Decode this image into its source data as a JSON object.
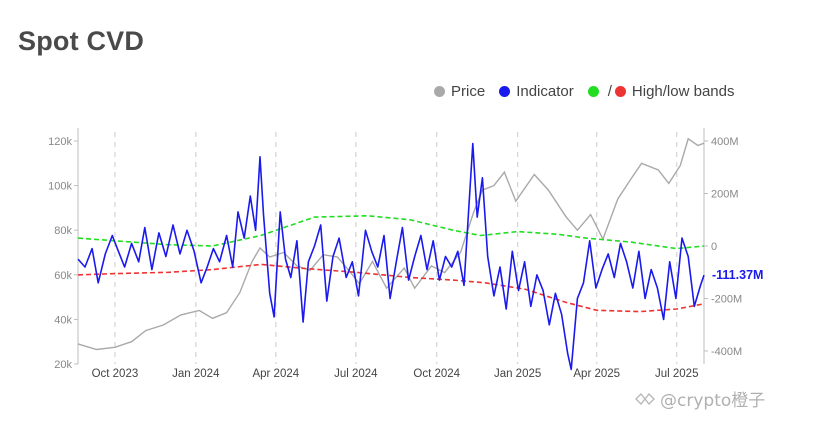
{
  "chart_data": {
    "type": "line",
    "title": "Spot CVD",
    "legend": {
      "placement": "top-right",
      "items": [
        {
          "label": "Price",
          "color": "#a9a9a9"
        },
        {
          "label": "Indicator",
          "color": "#1a1aee"
        },
        {
          "label": "High/low bands",
          "colors": [
            "#22dd22",
            "#ee3333"
          ]
        }
      ]
    },
    "x_ticks": [
      "Oct 2023",
      "Jan 2024",
      "Apr 2024",
      "Jul 2024",
      "Oct 2024",
      "Jan 2025",
      "Apr 2025",
      "Jul 2025"
    ],
    "x_range": [
      "2023-08-20",
      "2025-08-01"
    ],
    "y_left": {
      "ticks": [
        "20k",
        "40k",
        "60k",
        "80k",
        "100k",
        "120k"
      ],
      "range": [
        20000,
        120000
      ]
    },
    "y_right": {
      "ticks": [
        "400M",
        "200M",
        "0",
        "-200M",
        "-400M"
      ],
      "range": [
        -500,
        450
      ]
    },
    "last_indicator_label": "-111.37M",
    "series": [
      {
        "name": "Price",
        "axis": "left",
        "color": "#a9a9a9",
        "points": [
          [
            "2023-08-20",
            29000
          ],
          [
            "2023-09-10",
            26500
          ],
          [
            "2023-10-01",
            27500
          ],
          [
            "2023-10-20",
            30000
          ],
          [
            "2023-11-05",
            35000
          ],
          [
            "2023-11-25",
            37500
          ],
          [
            "2023-12-15",
            42000
          ],
          [
            "2024-01-05",
            44000
          ],
          [
            "2024-01-20",
            40500
          ],
          [
            "2024-02-05",
            43000
          ],
          [
            "2024-02-20",
            52000
          ],
          [
            "2024-03-05",
            66000
          ],
          [
            "2024-03-14",
            72000
          ],
          [
            "2024-03-25",
            68000
          ],
          [
            "2024-04-10",
            70000
          ],
          [
            "2024-04-25",
            64000
          ],
          [
            "2024-05-10",
            62000
          ],
          [
            "2024-05-25",
            69000
          ],
          [
            "2024-06-10",
            68000
          ],
          [
            "2024-06-25",
            61000
          ],
          [
            "2024-07-05",
            56000
          ],
          [
            "2024-07-20",
            66000
          ],
          [
            "2024-08-05",
            54000
          ],
          [
            "2024-08-25",
            63000
          ],
          [
            "2024-09-06",
            54000
          ],
          [
            "2024-09-25",
            64000
          ],
          [
            "2024-10-10",
            61000
          ],
          [
            "2024-10-28",
            70000
          ],
          [
            "2024-11-12",
            88000
          ],
          [
            "2024-11-22",
            98000
          ],
          [
            "2024-12-05",
            100000
          ],
          [
            "2024-12-17",
            106000
          ],
          [
            "2024-12-30",
            93000
          ],
          [
            "2025-01-20",
            105000
          ],
          [
            "2025-02-05",
            98000
          ],
          [
            "2025-02-25",
            86000
          ],
          [
            "2025-03-10",
            80000
          ],
          [
            "2025-03-25",
            87000
          ],
          [
            "2025-04-08",
            76000
          ],
          [
            "2025-04-25",
            94000
          ],
          [
            "2025-05-10",
            103000
          ],
          [
            "2025-05-22",
            110000
          ],
          [
            "2025-06-10",
            107000
          ],
          [
            "2025-06-22",
            101000
          ],
          [
            "2025-07-05",
            109000
          ],
          [
            "2025-07-14",
            121000
          ],
          [
            "2025-07-25",
            118000
          ],
          [
            "2025-08-01",
            119000
          ]
        ]
      },
      {
        "name": "Indicator",
        "axis": "right",
        "color": "#1a1aee",
        "points": [
          [
            "2023-08-20",
            -50
          ],
          [
            "2023-08-28",
            -80
          ],
          [
            "2023-09-05",
            -10
          ],
          [
            "2023-09-12",
            -140
          ],
          [
            "2023-09-20",
            -30
          ],
          [
            "2023-09-28",
            40
          ],
          [
            "2023-10-05",
            -20
          ],
          [
            "2023-10-12",
            -80
          ],
          [
            "2023-10-20",
            10
          ],
          [
            "2023-10-28",
            -60
          ],
          [
            "2023-11-04",
            70
          ],
          [
            "2023-11-12",
            -90
          ],
          [
            "2023-11-20",
            50
          ],
          [
            "2023-11-28",
            -40
          ],
          [
            "2023-12-06",
            80
          ],
          [
            "2023-12-14",
            -30
          ],
          [
            "2023-12-22",
            60
          ],
          [
            "2023-12-30",
            -20
          ],
          [
            "2024-01-07",
            -140
          ],
          [
            "2024-01-14",
            -80
          ],
          [
            "2024-01-21",
            -10
          ],
          [
            "2024-01-28",
            -60
          ],
          [
            "2024-02-05",
            40
          ],
          [
            "2024-02-12",
            -80
          ],
          [
            "2024-02-18",
            130
          ],
          [
            "2024-02-25",
            30
          ],
          [
            "2024-03-03",
            190
          ],
          [
            "2024-03-09",
            60
          ],
          [
            "2024-03-14",
            340
          ],
          [
            "2024-03-18",
            120
          ],
          [
            "2024-03-25",
            -180
          ],
          [
            "2024-03-30",
            -270
          ],
          [
            "2024-04-06",
            130
          ],
          [
            "2024-04-12",
            -50
          ],
          [
            "2024-04-18",
            -120
          ],
          [
            "2024-04-25",
            20
          ],
          [
            "2024-05-02",
            -290
          ],
          [
            "2024-05-08",
            -60
          ],
          [
            "2024-05-15",
            0
          ],
          [
            "2024-05-22",
            80
          ],
          [
            "2024-05-29",
            -210
          ],
          [
            "2024-06-05",
            -40
          ],
          [
            "2024-06-12",
            30
          ],
          [
            "2024-06-20",
            -120
          ],
          [
            "2024-06-27",
            -60
          ],
          [
            "2024-07-04",
            -190
          ],
          [
            "2024-07-12",
            60
          ],
          [
            "2024-07-19",
            -20
          ],
          [
            "2024-07-26",
            -80
          ],
          [
            "2024-08-02",
            40
          ],
          [
            "2024-08-09",
            -200
          ],
          [
            "2024-08-16",
            -60
          ],
          [
            "2024-08-23",
            70
          ],
          [
            "2024-08-30",
            -130
          ],
          [
            "2024-09-06",
            -40
          ],
          [
            "2024-09-13",
            40
          ],
          [
            "2024-09-20",
            -90
          ],
          [
            "2024-09-27",
            20
          ],
          [
            "2024-10-04",
            -130
          ],
          [
            "2024-10-11",
            -40
          ],
          [
            "2024-10-18",
            -80
          ],
          [
            "2024-10-25",
            -20
          ],
          [
            "2024-11-01",
            -150
          ],
          [
            "2024-11-06",
            120
          ],
          [
            "2024-11-11",
            390
          ],
          [
            "2024-11-16",
            110
          ],
          [
            "2024-11-22",
            260
          ],
          [
            "2024-11-28",
            -40
          ],
          [
            "2024-12-05",
            -190
          ],
          [
            "2024-12-12",
            -80
          ],
          [
            "2024-12-19",
            -240
          ],
          [
            "2024-12-26",
            -20
          ],
          [
            "2025-01-02",
            -170
          ],
          [
            "2025-01-09",
            -60
          ],
          [
            "2025-01-16",
            -230
          ],
          [
            "2025-01-23",
            -110
          ],
          [
            "2025-01-30",
            -170
          ],
          [
            "2025-02-06",
            -300
          ],
          [
            "2025-02-13",
            -180
          ],
          [
            "2025-02-20",
            -260
          ],
          [
            "2025-02-27",
            -410
          ],
          [
            "2025-03-03",
            -470
          ],
          [
            "2025-03-10",
            -200
          ],
          [
            "2025-03-17",
            -140
          ],
          [
            "2025-03-24",
            20
          ],
          [
            "2025-03-31",
            -160
          ],
          [
            "2025-04-07",
            -90
          ],
          [
            "2025-04-14",
            -30
          ],
          [
            "2025-04-21",
            -120
          ],
          [
            "2025-04-28",
            10
          ],
          [
            "2025-05-05",
            -60
          ],
          [
            "2025-05-12",
            -160
          ],
          [
            "2025-05-19",
            -20
          ],
          [
            "2025-05-26",
            -200
          ],
          [
            "2025-06-02",
            -90
          ],
          [
            "2025-06-09",
            -160
          ],
          [
            "2025-06-16",
            -280
          ],
          [
            "2025-06-23",
            -60
          ],
          [
            "2025-06-30",
            -200
          ],
          [
            "2025-07-07",
            30
          ],
          [
            "2025-07-14",
            -40
          ],
          [
            "2025-07-21",
            -230
          ],
          [
            "2025-07-28",
            -150
          ],
          [
            "2025-08-01",
            -111
          ]
        ]
      },
      {
        "name": "High band",
        "axis": "right",
        "color": "#22dd22",
        "points": [
          [
            "2023-08-20",
            30
          ],
          [
            "2023-10-01",
            20
          ],
          [
            "2023-12-01",
            5
          ],
          [
            "2024-01-20",
            0
          ],
          [
            "2024-03-15",
            40
          ],
          [
            "2024-05-15",
            110
          ],
          [
            "2024-07-15",
            115
          ],
          [
            "2024-09-01",
            100
          ],
          [
            "2024-10-20",
            60
          ],
          [
            "2024-11-20",
            40
          ],
          [
            "2025-01-01",
            55
          ],
          [
            "2025-02-15",
            45
          ],
          [
            "2025-03-20",
            30
          ],
          [
            "2025-05-10",
            15
          ],
          [
            "2025-07-01",
            -10
          ],
          [
            "2025-08-01",
            0
          ]
        ]
      },
      {
        "name": "Low band",
        "axis": "right",
        "color": "#ee3333",
        "points": [
          [
            "2023-08-20",
            -110
          ],
          [
            "2023-10-01",
            -105
          ],
          [
            "2023-12-01",
            -100
          ],
          [
            "2024-01-20",
            -90
          ],
          [
            "2024-03-15",
            -70
          ],
          [
            "2024-05-01",
            -85
          ],
          [
            "2024-07-01",
            -100
          ],
          [
            "2024-09-01",
            -120
          ],
          [
            "2024-10-20",
            -130
          ],
          [
            "2024-11-25",
            -140
          ],
          [
            "2025-01-10",
            -165
          ],
          [
            "2025-02-25",
            -215
          ],
          [
            "2025-04-01",
            -245
          ],
          [
            "2025-05-20",
            -250
          ],
          [
            "2025-07-01",
            -240
          ],
          [
            "2025-08-01",
            -220
          ]
        ]
      }
    ]
  },
  "watermark": "@crypto橙子"
}
